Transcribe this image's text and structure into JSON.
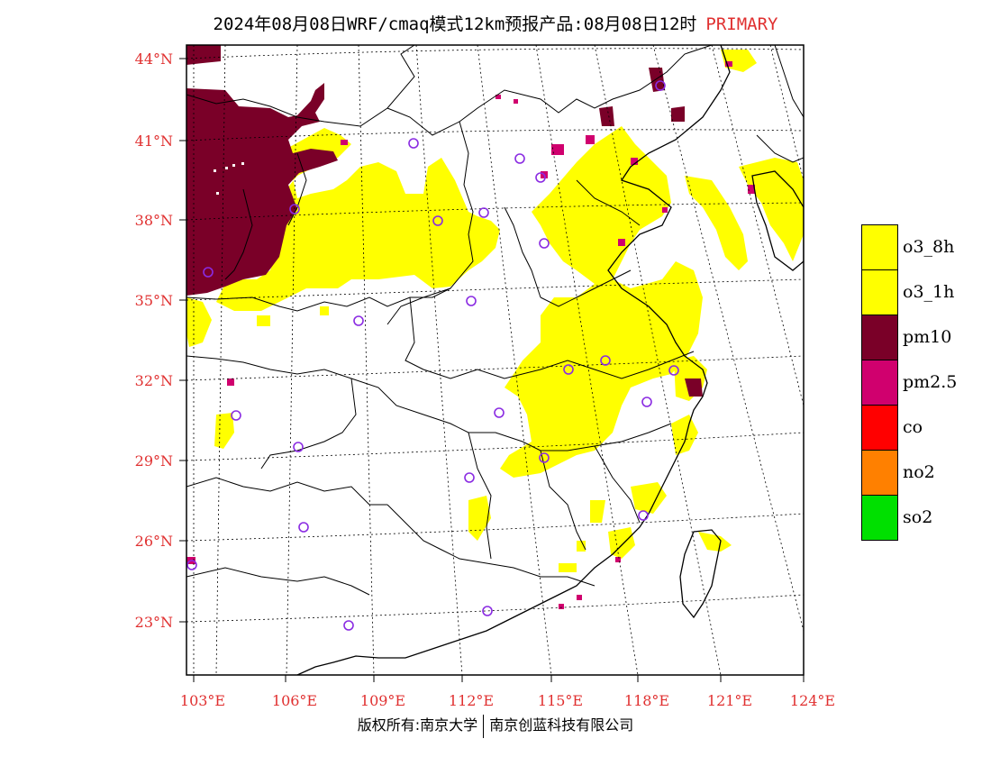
{
  "title": {
    "text": "2024年08月08日WRF/cmaq模式12km预报产品:08月08日12时",
    "tag": "PRIMARY",
    "tag_color": "#e03030"
  },
  "axes": {
    "lat_labels": [
      "44°N",
      "41°N",
      "38°N",
      "35°N",
      "32°N",
      "29°N",
      "26°N",
      "23°N"
    ],
    "lon_labels": [
      "103°E",
      "106°E",
      "109°E",
      "112°E",
      "115°E",
      "118°E",
      "121°E",
      "124°E"
    ],
    "label_color": "#e03030"
  },
  "legend": [
    {
      "label": "o3_8h",
      "color": "#ffff00"
    },
    {
      "label": "o3_1h",
      "color": "#ffff00"
    },
    {
      "label": "pm10",
      "color": "#7a0028"
    },
    {
      "label": "pm2.5",
      "color": "#d0006e"
    },
    {
      "label": "co",
      "color": "#ff0000"
    },
    {
      "label": "no2",
      "color": "#ff8000"
    },
    {
      "label": "so2",
      "color": "#00e000"
    }
  ],
  "stations": 25,
  "footer": {
    "left": "版权所有:南京大学",
    "right": "南京创蓝科技有限公司"
  }
}
